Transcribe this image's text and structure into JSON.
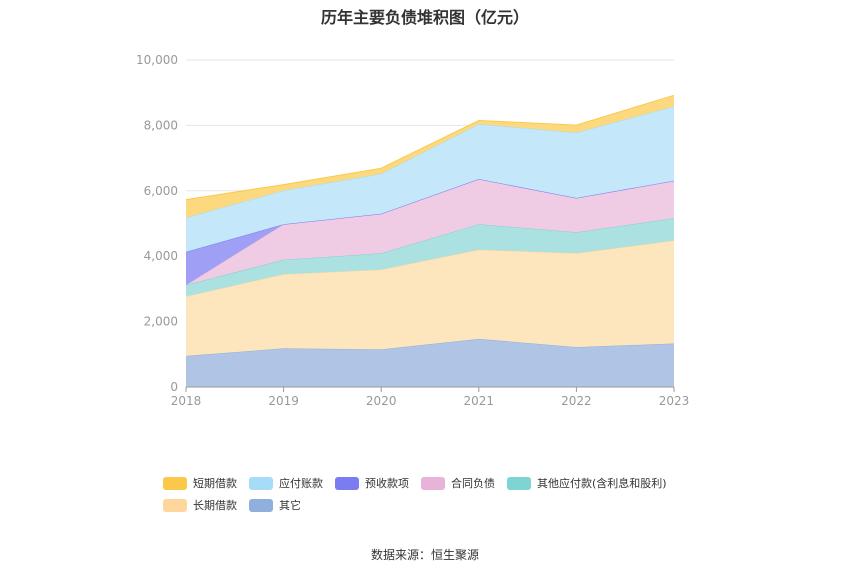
{
  "chart_data": {
    "type": "area",
    "title": "历年主要负债堆积图（亿元）",
    "x": [
      "2018",
      "2019",
      "2020",
      "2021",
      "2022",
      "2023"
    ],
    "ylim": [
      0,
      10000
    ],
    "yticks": [
      0,
      2000,
      4000,
      6000,
      8000,
      10000
    ],
    "ytick_labels": [
      "0",
      "2,000",
      "4,000",
      "6,000",
      "8,000",
      "10,000"
    ],
    "xlabel": "",
    "ylabel": "",
    "grid": true,
    "legend_position": "bottom",
    "series": [
      {
        "name": "其它",
        "color": "#90afdc",
        "fill": "#b0c5e6",
        "values": [
          950,
          1180,
          1150,
          1470,
          1220,
          1330
        ]
      },
      {
        "name": "长期借款",
        "color": "#fdd79b",
        "fill": "#fde6bd",
        "values": [
          1820,
          2270,
          2440,
          2730,
          2870,
          3150
        ]
      },
      {
        "name": "其他应付款(含利息和股利)",
        "color": "#7ed3d3",
        "fill": "#ace1e1",
        "values": [
          350,
          440,
          500,
          780,
          640,
          680
        ]
      },
      {
        "name": "合同负债",
        "color": "#e8b3d8",
        "fill": "#efcbe4",
        "values": [
          0,
          1090,
          1210,
          1380,
          1050,
          1150
        ]
      },
      {
        "name": "预收款项",
        "color": "#7b7cf0",
        "fill": "#9e9ff5",
        "values": [
          1010,
          0,
          0,
          0,
          0,
          0
        ]
      },
      {
        "name": "应付账款",
        "color": "#a6dcf7",
        "fill": "#c4e8f9",
        "values": [
          1050,
          1030,
          1220,
          1680,
          2000,
          2270
        ]
      },
      {
        "name": "短期借款",
        "color": "#fcc84a",
        "fill": "#fcd97e",
        "values": [
          550,
          180,
          170,
          110,
          230,
          340
        ]
      }
    ]
  },
  "legend": {
    "row1": [
      "短期借款",
      "应付账款",
      "预收款项",
      "合同负债",
      "其他应付款(含利息和股利)"
    ],
    "row2": [
      "长期借款",
      "其它"
    ]
  },
  "source": "数据来源：恒生聚源"
}
